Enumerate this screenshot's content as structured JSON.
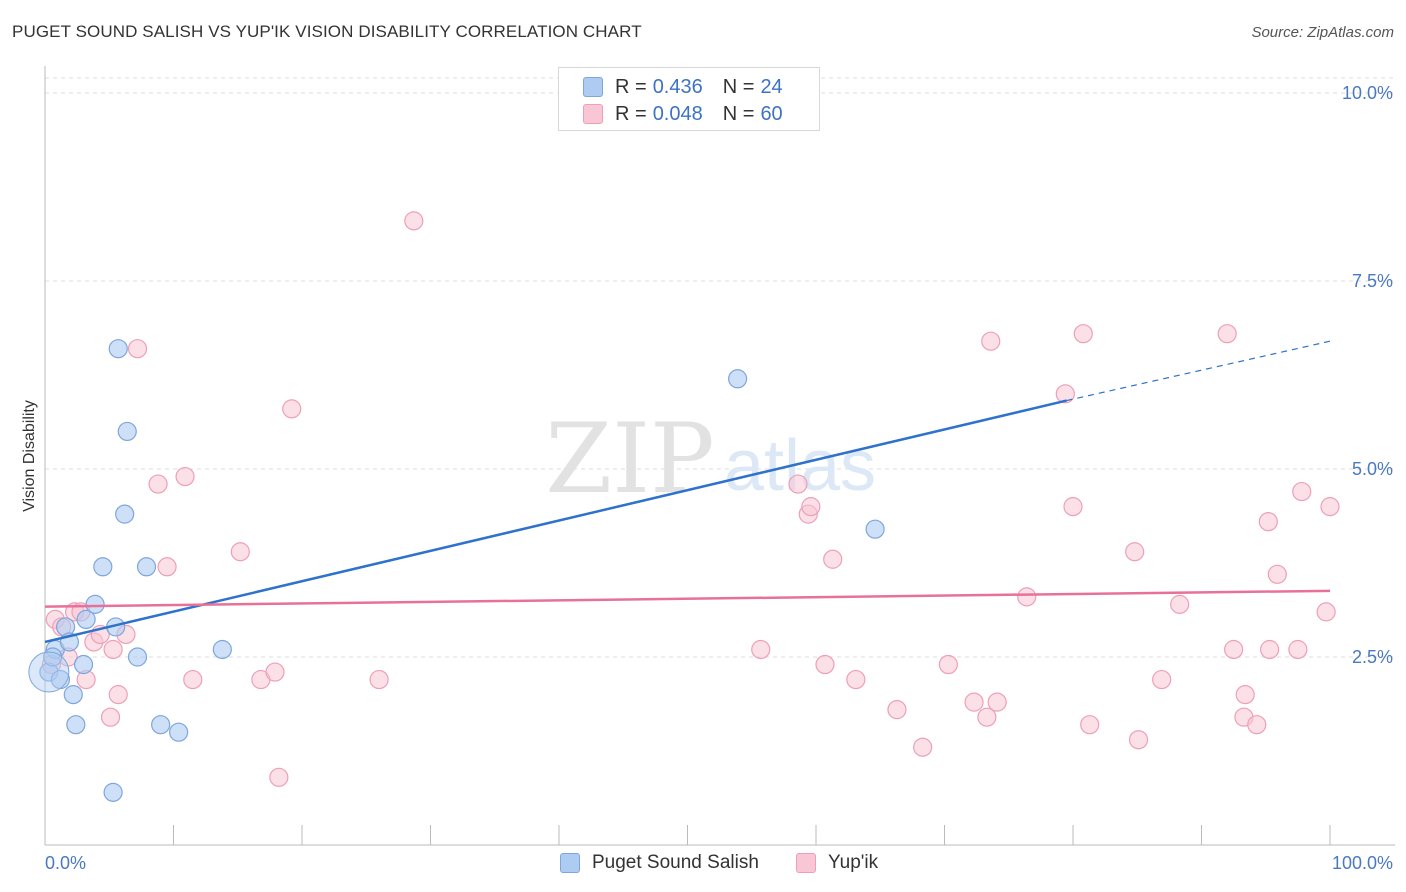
{
  "title": "PUGET SOUND SALISH VS YUP'IK VISION DISABILITY CORRELATION CHART",
  "source": "Source: ZipAtlas.com",
  "watermark": {
    "zip": "ZIP",
    "atlas": "atlas"
  },
  "legend": {
    "series1": {
      "r_label": "R =",
      "r_value": "0.436",
      "n_label": "N =",
      "n_value": "24"
    },
    "series2": {
      "r_label": "R =",
      "r_value": "0.048",
      "n_label": "N =",
      "n_value": "60"
    }
  },
  "colors": {
    "blue_fill": "#aecbf2",
    "blue_stroke": "#7ea6dc",
    "blue_line": "#2e72cc",
    "pink_fill": "#f8c6d5",
    "pink_stroke": "#ee9fb7",
    "pink_line": "#e8719a",
    "axis_text": "#4a78c2",
    "grid": "#dddddd"
  },
  "chart_data": {
    "type": "scatter",
    "title": "PUGET SOUND SALISH VS YUP'IK VISION DISABILITY CORRELATION CHART",
    "xlabel": "",
    "ylabel": "Vision Disability",
    "xlim": [
      0,
      100
    ],
    "ylim": [
      0,
      10.2
    ],
    "x_tick_labels": [
      "0.0%",
      "100.0%"
    ],
    "y_ticks": [
      2.5,
      5.0,
      7.5,
      10.0
    ],
    "y_tick_labels": [
      "2.5%",
      "5.0%",
      "7.5%",
      "10.0%"
    ],
    "grid": true,
    "series": [
      {
        "name": "Puget Sound Salish",
        "r": 0.436,
        "n": 24,
        "points": [
          [
            0.3,
            2.3
          ],
          [
            0.8,
            2.6
          ],
          [
            1.2,
            2.2
          ],
          [
            1.6,
            2.9
          ],
          [
            1.9,
            2.7
          ],
          [
            2.2,
            2.0
          ],
          [
            2.4,
            1.6
          ],
          [
            3.0,
            2.4
          ],
          [
            3.2,
            3.0
          ],
          [
            3.9,
            3.2
          ],
          [
            4.5,
            3.7
          ],
          [
            5.3,
            0.7
          ],
          [
            5.5,
            2.9
          ],
          [
            5.7,
            6.6
          ],
          [
            6.2,
            4.4
          ],
          [
            6.4,
            5.5
          ],
          [
            7.2,
            2.5
          ],
          [
            7.9,
            3.7
          ],
          [
            9.0,
            1.6
          ],
          [
            10.4,
            1.5
          ],
          [
            13.8,
            2.6
          ],
          [
            53.9,
            6.2
          ],
          [
            64.6,
            4.2
          ],
          [
            0.6,
            2.5
          ]
        ],
        "trend": {
          "x0": 0,
          "y0": 2.7,
          "x1": 79.5,
          "y1": 5.91,
          "x_ext": 100,
          "y_ext": 6.7
        }
      },
      {
        "name": "Yup'ik",
        "r": 0.048,
        "n": 60,
        "points": [
          [
            0.5,
            2.4
          ],
          [
            0.8,
            3.0
          ],
          [
            1.3,
            2.9
          ],
          [
            1.8,
            2.5
          ],
          [
            2.3,
            3.1
          ],
          [
            2.8,
            3.1
          ],
          [
            3.2,
            2.2
          ],
          [
            3.8,
            2.7
          ],
          [
            4.3,
            2.8
          ],
          [
            5.1,
            1.7
          ],
          [
            5.3,
            2.6
          ],
          [
            5.7,
            2.0
          ],
          [
            6.3,
            2.8
          ],
          [
            7.2,
            6.6
          ],
          [
            8.8,
            4.8
          ],
          [
            9.5,
            3.7
          ],
          [
            10.9,
            4.9
          ],
          [
            11.5,
            2.2
          ],
          [
            15.2,
            3.9
          ],
          [
            16.8,
            2.2
          ],
          [
            17.9,
            2.3
          ],
          [
            18.2,
            0.9
          ],
          [
            19.2,
            5.8
          ],
          [
            26.0,
            2.2
          ],
          [
            28.7,
            8.3
          ],
          [
            55.7,
            2.6
          ],
          [
            58.6,
            4.8
          ],
          [
            59.4,
            4.4
          ],
          [
            59.6,
            4.5
          ],
          [
            60.7,
            2.4
          ],
          [
            61.3,
            3.8
          ],
          [
            63.1,
            2.2
          ],
          [
            66.3,
            1.8
          ],
          [
            68.3,
            1.3
          ],
          [
            70.3,
            2.4
          ],
          [
            72.3,
            1.9
          ],
          [
            73.3,
            1.7
          ],
          [
            73.6,
            6.7
          ],
          [
            74.1,
            1.9
          ],
          [
            76.4,
            3.3
          ],
          [
            79.4,
            6.0
          ],
          [
            80.0,
            4.5
          ],
          [
            80.8,
            6.8
          ],
          [
            81.3,
            1.6
          ],
          [
            84.8,
            3.9
          ],
          [
            85.1,
            1.4
          ],
          [
            86.9,
            2.2
          ],
          [
            88.3,
            3.2
          ],
          [
            92.0,
            6.8
          ],
          [
            92.5,
            2.6
          ],
          [
            93.3,
            1.7
          ],
          [
            93.4,
            2.0
          ],
          [
            94.3,
            1.6
          ],
          [
            95.2,
            4.3
          ],
          [
            95.3,
            2.6
          ],
          [
            95.9,
            3.6
          ],
          [
            97.5,
            2.6
          ],
          [
            97.8,
            4.7
          ],
          [
            99.7,
            3.1
          ],
          [
            100.0,
            4.5
          ]
        ],
        "trend": {
          "x0": 0,
          "y0": 3.17,
          "x1": 100,
          "y1": 3.38
        }
      }
    ]
  }
}
